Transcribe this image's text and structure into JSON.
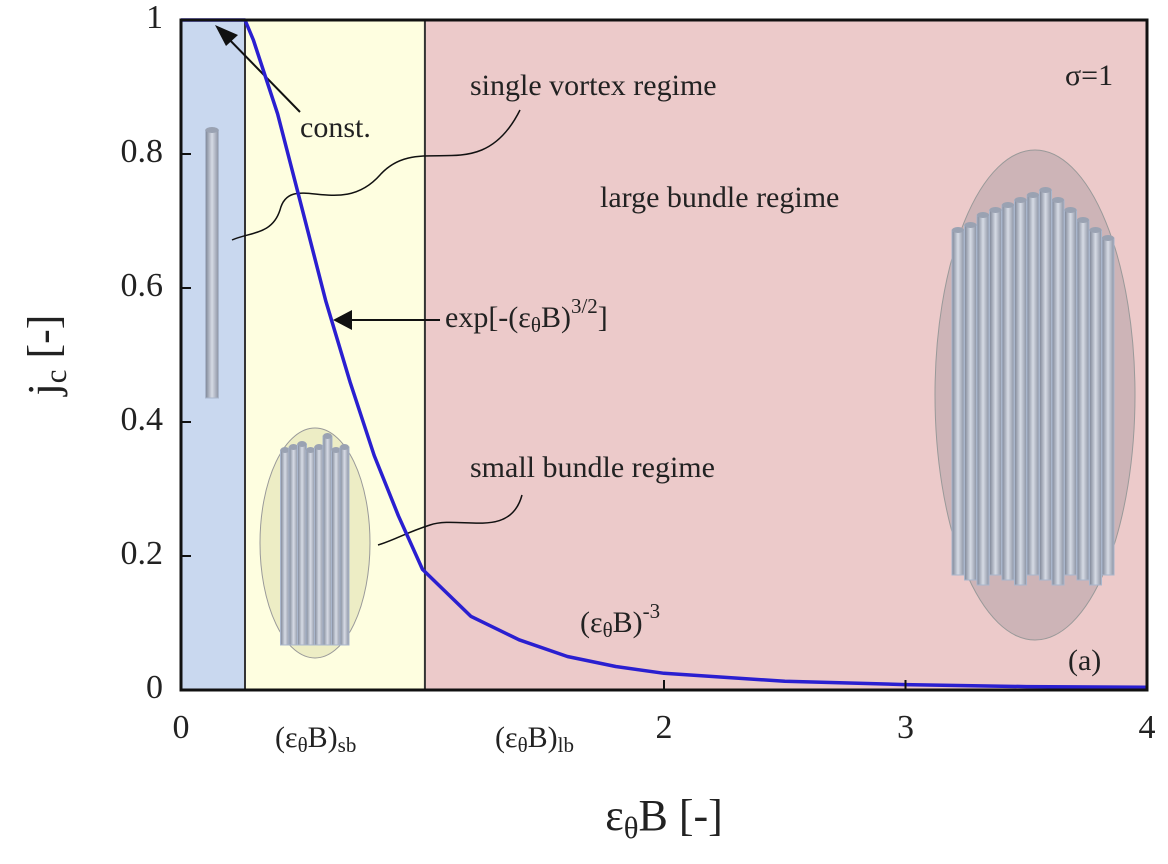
{
  "chart_data": {
    "type": "line",
    "xlim": [
      0,
      4
    ],
    "ylim": [
      0,
      1
    ],
    "xticks": [
      0,
      2,
      3,
      4
    ],
    "yticks": [
      0,
      0.2,
      0.4,
      0.6,
      0.8,
      1
    ],
    "x_label": [
      {
        "text": "ε"
      },
      {
        "sub": "θ"
      },
      {
        "text": "B [-]"
      }
    ],
    "y_label": [
      {
        "text": "j"
      },
      {
        "sub": "c"
      },
      {
        "text": " [-]"
      }
    ],
    "regions": [
      {
        "x": [
          0,
          0.265
        ],
        "color": "#c9d8ef"
      },
      {
        "x": [
          0.265,
          1.01
        ],
        "color": "#fefee0"
      },
      {
        "x": [
          1.01,
          4
        ],
        "color": "#eccaca"
      }
    ],
    "series": [
      {
        "color": "#2a1fd0",
        "x": [
          0,
          0.265,
          0.3,
          0.4,
          0.5,
          0.6,
          0.7,
          0.8,
          0.9,
          1.0,
          1.2,
          1.4,
          1.6,
          1.8,
          2.0,
          2.5,
          3.0,
          3.5,
          4.0
        ],
        "values": [
          1,
          1,
          0.97,
          0.86,
          0.72,
          0.58,
          0.46,
          0.35,
          0.26,
          0.18,
          0.11,
          0.075,
          0.05,
          0.035,
          0.025,
          0.013,
          0.008,
          0.005,
          0.004
        ]
      }
    ],
    "annotations": [
      {
        "parts": [
          {
            "text": "single vortex regime"
          }
        ]
      },
      {
        "parts": [
          {
            "text": "const."
          }
        ]
      },
      {
        "parts": [
          {
            "text": "large bundle regime"
          }
        ]
      },
      {
        "parts": [
          {
            "text": "exp[-(ε"
          },
          {
            "sub": "θ"
          },
          {
            "text": "B)"
          },
          {
            "sup": "3/2"
          },
          {
            "text": "]"
          }
        ]
      },
      {
        "parts": [
          {
            "text": "small bundle regime"
          }
        ]
      },
      {
        "parts": [
          {
            "text": "(ε"
          },
          {
            "sub": "θ"
          },
          {
            "text": "B)"
          },
          {
            "sup": "-3"
          }
        ]
      },
      {
        "parts": [
          {
            "text": "σ=1"
          }
        ]
      },
      {
        "parts": [
          {
            "text": "(a)"
          }
        ]
      },
      {
        "parts": [
          {
            "text": "(ε"
          },
          {
            "sub": "θ"
          },
          {
            "text": "B)"
          },
          {
            "sub": "sb"
          }
        ]
      },
      {
        "parts": [
          {
            "text": "(ε"
          },
          {
            "sub": "θ"
          },
          {
            "text": "B)"
          },
          {
            "sub": "lb"
          }
        ]
      }
    ]
  }
}
